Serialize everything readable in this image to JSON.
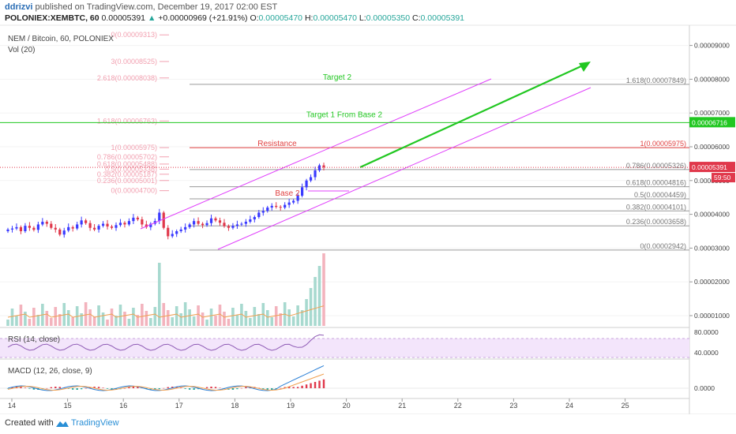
{
  "header": {
    "author": "ddrizvi",
    "published": "published on TradingView.com, December 19, 2017 02:00 EST",
    "symbol": "POLONIEX:XEMBTC, 60",
    "price": "0.00005391",
    "arrow": "▲",
    "change": "+0.00000969 (+21.91%)",
    "o_label": "O:",
    "o_val": "0.00005470",
    "h_label": "H:",
    "h_val": "0.00005470",
    "l_label": "L:",
    "l_val": "0.00005350",
    "c_label": "C:",
    "c_val": "0.00005391"
  },
  "pane_labels": {
    "main": "NEM / Bitcoin, 60, POLONIEX",
    "vol": "Vol (20)",
    "rsi": "RSI (14, close)",
    "macd": "MACD (12, 26, close, 9)"
  },
  "footer": {
    "created": "Created with",
    "brand": "TradingView"
  },
  "colors": {
    "up": "#3a3aff",
    "down": "#e0384b",
    "fib_left": "#f2a0b0",
    "fib_right": "#888888",
    "channel": "#e040fb",
    "target": "#21c721",
    "resistance": "#e04040",
    "rsi_band": "#f3e5fb"
  },
  "chart_data": {
    "type": "candlestick",
    "title": "NEM / Bitcoin, 60, POLONIEX",
    "x_ticks": [
      "14",
      "15",
      "16",
      "17",
      "18",
      "19",
      "20",
      "21",
      "22",
      "23",
      "24",
      "25"
    ],
    "y_ticks": [
      "0.00009000",
      "0.00008000",
      "0.00007000",
      "0.00006000",
      "0.00005000",
      "0.00004000",
      "0.00003000",
      "0.00002000",
      "0.00001000"
    ],
    "y_range": [
      8.8e-06,
      1.03e-05
    ],
    "price_labels": {
      "target_line": "0.00006716",
      "last_price": "0.00005391",
      "countdown": "59:50"
    },
    "closes": [
      3.55,
      3.58,
      3.62,
      3.5,
      3.66,
      3.6,
      3.54,
      3.7,
      3.78,
      3.72,
      3.6,
      3.55,
      3.4,
      3.52,
      3.62,
      3.58,
      3.7,
      3.82,
      3.74,
      3.6,
      3.55,
      3.66,
      3.72,
      3.64,
      3.6,
      3.68,
      3.75,
      3.7,
      3.8,
      3.9,
      3.85,
      3.7,
      3.62,
      3.72,
      3.8,
      4.05,
      3.6,
      3.35,
      3.42,
      3.5,
      3.55,
      3.62,
      3.7,
      3.8,
      3.72,
      3.68,
      3.74,
      3.88,
      3.82,
      3.75,
      3.65,
      3.6,
      3.66,
      3.7,
      3.72,
      3.78,
      3.85,
      3.92,
      4.05,
      4.1,
      4.2,
      4.25,
      4.22,
      4.2,
      4.28,
      4.35,
      4.4,
      4.55,
      4.8,
      5.0,
      5.1,
      5.3,
      5.45,
      5.39
    ],
    "fib_left": [
      {
        "label": "0(0.00009313)",
        "value": 9.313
      },
      {
        "label": "3(0.00008525)",
        "value": 8.525
      },
      {
        "label": "2.618(0.00008038)",
        "value": 8.038
      },
      {
        "label": "1.618(0.00006763)",
        "value": 6.763
      },
      {
        "label": "1(0.00005975)",
        "value": 5.975
      },
      {
        "label": "0.786(0.00005702)",
        "value": 5.702
      },
      {
        "label": "0.618(0.00005488)",
        "value": 5.488
      },
      {
        "label": "0.5(0.00005338)",
        "value": 5.338
      },
      {
        "label": "0.382(0.00005187)",
        "value": 5.187
      },
      {
        "label": "0.236(0.00005001)",
        "value": 5.001
      },
      {
        "label": "0(0.00004700)",
        "value": 4.7
      }
    ],
    "fib_right": [
      {
        "label": "1.618(0.00007849)",
        "value": 7.849
      },
      {
        "label": "1(0.00005975)",
        "value": 5.975
      },
      {
        "label": "0.786(0.00005326)",
        "value": 5.326
      },
      {
        "label": "0.618(0.00004816)",
        "value": 4.816
      },
      {
        "label": "0.5(0.00004459)",
        "value": 4.459
      },
      {
        "label": "0.382(0.00004101)",
        "value": 4.101
      },
      {
        "label": "0.236(0.00003658)",
        "value": 3.658
      },
      {
        "label": "0(0.00002942)",
        "value": 2.942
      }
    ],
    "annotations": {
      "target2": "Target 2",
      "target1": "Target 1 From Base 2",
      "resistance": "Resistance",
      "base2": "Base 2"
    },
    "rsi_ticks": [
      "80.0000",
      "40.0000"
    ],
    "macd_ticks": [
      "0.0000"
    ]
  }
}
